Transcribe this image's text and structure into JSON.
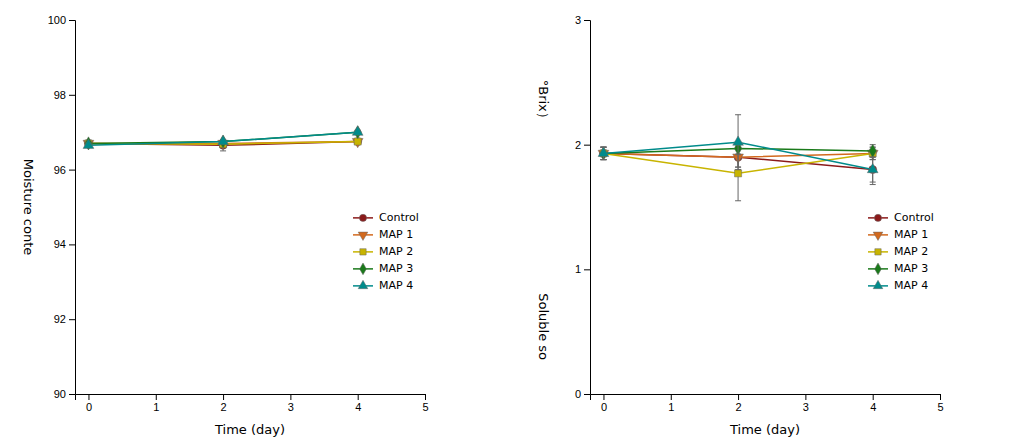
{
  "chart_data": [
    {
      "type": "line",
      "xlabel": "Time (day)",
      "ylabel": "Moisture conte",
      "xlim": [
        -0.2,
        5
      ],
      "ylim": [
        90,
        100
      ],
      "xticks": [
        0,
        1,
        2,
        3,
        4,
        5
      ],
      "yticks": [
        90,
        92,
        94,
        96,
        98,
        100
      ],
      "legend": "right",
      "series": [
        {
          "name": "Control",
          "color": "#8B1A1A",
          "marker": "circle",
          "x": [
            0,
            2,
            4
          ],
          "values": [
            96.7,
            96.65,
            96.75
          ],
          "errors": [
            0.05,
            0.15,
            0.05
          ]
        },
        {
          "name": "MAP 1",
          "color": "#D2691E",
          "marker": "triangle-down",
          "x": [
            0,
            2,
            4
          ],
          "values": [
            96.7,
            96.7,
            96.75
          ],
          "errors": [
            0.05,
            0.08,
            0.05
          ]
        },
        {
          "name": "MAP 2",
          "color": "#C8B400",
          "marker": "square",
          "x": [
            0,
            2,
            4
          ],
          "values": [
            96.7,
            96.68,
            96.75
          ],
          "errors": [
            0.05,
            0.05,
            0.05
          ]
        },
        {
          "name": "MAP 3",
          "color": "#1A7A1A",
          "marker": "diamond",
          "x": [
            0,
            2,
            4
          ],
          "values": [
            96.7,
            96.75,
            97.0
          ],
          "errors": [
            0.05,
            0.05,
            0.05
          ]
        },
        {
          "name": "MAP 4",
          "color": "#008B8B",
          "marker": "triangle",
          "x": [
            0,
            2,
            4
          ],
          "values": [
            96.65,
            96.75,
            97.0
          ],
          "errors": [
            0.05,
            0.05,
            0.05
          ]
        }
      ]
    },
    {
      "type": "line",
      "xlabel": "Time (day)",
      "annotations": [
        "°Brix）",
        "Soluble so"
      ],
      "xlim": [
        -0.2,
        5
      ],
      "ylim": [
        0,
        3
      ],
      "xticks": [
        0,
        1,
        2,
        3,
        4,
        5
      ],
      "yticks": [
        0,
        1,
        2,
        3
      ],
      "legend": "right",
      "series": [
        {
          "name": "Control",
          "color": "#8B1A1A",
          "marker": "circle",
          "x": [
            0,
            2,
            4
          ],
          "values": [
            1.93,
            1.9,
            1.8
          ],
          "errors": [
            0.05,
            0.08,
            0.12
          ]
        },
        {
          "name": "MAP 1",
          "color": "#D2691E",
          "marker": "triangle-down",
          "x": [
            0,
            2,
            4
          ],
          "values": [
            1.93,
            1.9,
            1.93
          ],
          "errors": [
            0.05,
            0.08,
            0.05
          ]
        },
        {
          "name": "MAP 2",
          "color": "#C8B400",
          "marker": "square",
          "x": [
            0,
            2,
            4
          ],
          "values": [
            1.93,
            1.77,
            1.93
          ],
          "errors": [
            0.05,
            0.22,
            0.05
          ]
        },
        {
          "name": "MAP 3",
          "color": "#1A7A1A",
          "marker": "diamond",
          "x": [
            0,
            2,
            4
          ],
          "values": [
            1.93,
            1.97,
            1.95
          ],
          "errors": [
            0.05,
            0.05,
            0.05
          ]
        },
        {
          "name": "MAP 4",
          "color": "#008B8B",
          "marker": "triangle",
          "x": [
            0,
            2,
            4
          ],
          "values": [
            1.93,
            2.02,
            1.8
          ],
          "errors": [
            0.05,
            0.22,
            0.1
          ]
        }
      ]
    }
  ]
}
